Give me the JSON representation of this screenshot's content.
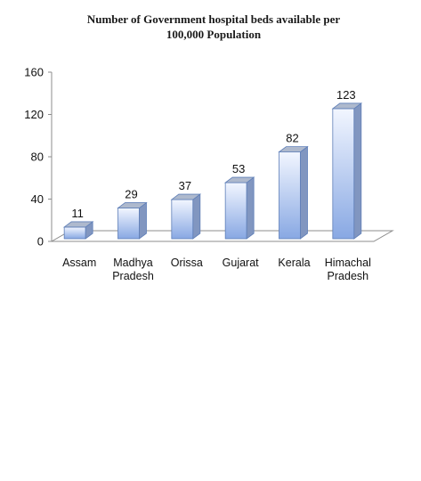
{
  "chart_data": {
    "type": "bar",
    "title_lines": [
      "Number of Government hospital beds available per",
      "100,000 Population"
    ],
    "categories": [
      [
        "Assam"
      ],
      [
        "Madhya",
        "Pradesh"
      ],
      [
        "Orissa"
      ],
      [
        "Gujarat"
      ],
      [
        "Kerala"
      ],
      [
        "Himachal",
        "Pradesh"
      ]
    ],
    "series": [
      {
        "values": [
          11,
          29,
          37,
          53,
          82,
          123
        ]
      }
    ],
    "data_labels": [
      "11",
      "29",
      "37",
      "53",
      "82",
      "123"
    ],
    "yticks": [
      "0",
      "40",
      "80",
      "120",
      "160"
    ],
    "ylim": [
      0,
      160
    ],
    "xlabel": "",
    "ylabel": "",
    "grid": false,
    "legend": "none",
    "colors": {
      "bar_light": "#f2f6ff",
      "bar_dark": "#88a8e3",
      "bar_side": "#8196c0",
      "bar_top": "#aeb9cd",
      "floor": "#ffffff",
      "axis": "#8c8c8c"
    }
  }
}
